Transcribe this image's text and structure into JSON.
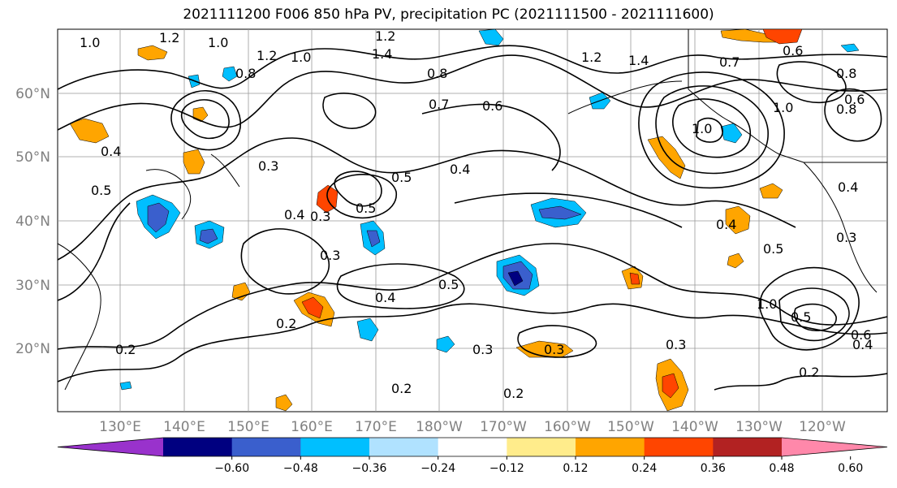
{
  "title": "2021111200 F006 850 hPa PV, precipitation PC (2021111500 - 2021111600)",
  "latitude_labels": [
    "60°N",
    "50°N",
    "40°N",
    "30°N",
    "20°N"
  ],
  "longitude_labels": [
    "130°E",
    "140°E",
    "150°E",
    "160°E",
    "170°E",
    "180°W",
    "170°W",
    "160°W",
    "150°W",
    "140°W",
    "130°W",
    "120°W"
  ],
  "contour_labels": [
    "1.0",
    "1.2",
    "1.0",
    "1.2",
    "1.2",
    "1.0",
    "0.8",
    "1.4",
    "0.8",
    "0.7",
    "0.6",
    "0.5",
    "0.4",
    "1.2",
    "1.4",
    "0.7",
    "1.0",
    "0.6",
    "0.8",
    "0.4",
    "0.5",
    "0.3",
    "0.3",
    "0.4",
    "0.3",
    "0.5",
    "0.5",
    "0.4",
    "0.2",
    "0.2",
    "0.3",
    "0.3",
    "0.2",
    "0.2",
    "0.3",
    "0.5",
    "0.4",
    "1.0",
    "1.0",
    "0.4",
    "0.8",
    "0.4",
    "0.6",
    "0.6",
    "0.2",
    "0.5",
    "0.3"
  ],
  "colorbar": {
    "ticks": [
      "−0.60",
      "−0.48",
      "−0.36",
      "−0.24",
      "−0.12",
      "0.12",
      "0.24",
      "0.36",
      "0.48",
      "0.60"
    ],
    "colors": [
      "#9932cc",
      "#000080",
      "#3a5fcd",
      "#00bfff",
      "#b0e2ff",
      "#ffffff",
      "#ffec8b",
      "#ffa500",
      "#ff4500",
      "#b22222",
      "#ff88aa"
    ]
  },
  "colors": {
    "positive_anomaly": "#ffa500",
    "negative_anomaly": "#00bfff",
    "contour": "#000000",
    "grid": "#808080"
  }
}
